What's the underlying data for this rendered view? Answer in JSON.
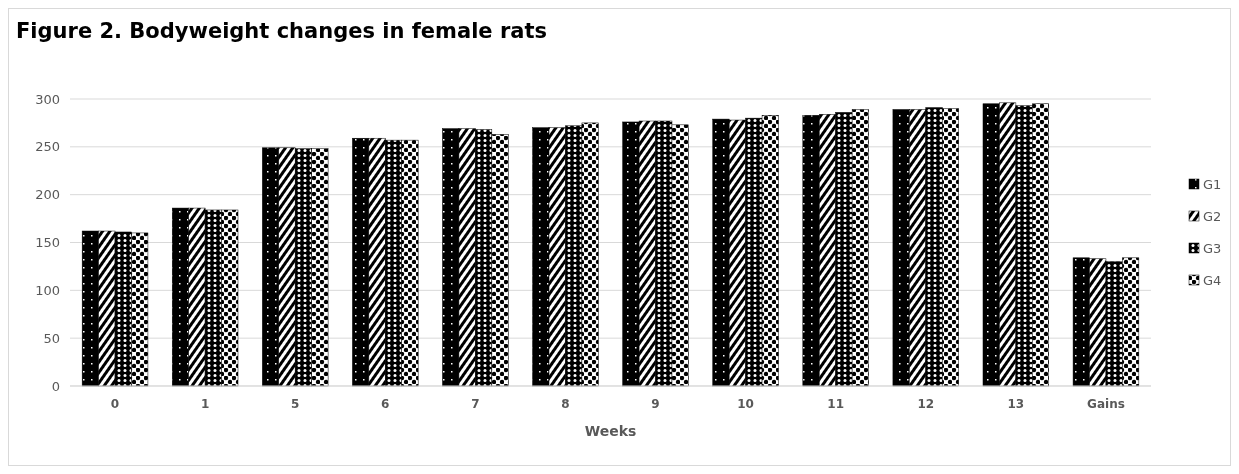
{
  "chart_data": {
    "type": "bar",
    "title": "Figure 2. Bodyweight changes in female rats",
    "xlabel": "Weeks",
    "categories": [
      "0",
      "1",
      "5",
      "6",
      "7",
      "8",
      "9",
      "10",
      "11",
      "12",
      "13",
      "Gains"
    ],
    "series": [
      {
        "name": "G1",
        "color": "#000000",
        "values": [
          162,
          186,
          249,
          259,
          269,
          270,
          276,
          279,
          283,
          289,
          295,
          134
        ]
      },
      {
        "name": "G2",
        "color": "#000000",
        "values": [
          162,
          186,
          249,
          259,
          269,
          270,
          277,
          278,
          284,
          289,
          296,
          133
        ]
      },
      {
        "name": "G3",
        "color": "#000000",
        "values": [
          161,
          184,
          248,
          257,
          268,
          272,
          277,
          280,
          286,
          291,
          293,
          130
        ]
      },
      {
        "name": "G4",
        "color": "#000000",
        "values": [
          160,
          184,
          248,
          257,
          263,
          275,
          273,
          283,
          289,
          290,
          295,
          134
        ]
      }
    ],
    "ylim": [
      0,
      300
    ],
    "yticks": [
      0,
      50,
      100,
      150,
      200,
      250,
      300
    ],
    "grid": "y",
    "legend": "right"
  }
}
